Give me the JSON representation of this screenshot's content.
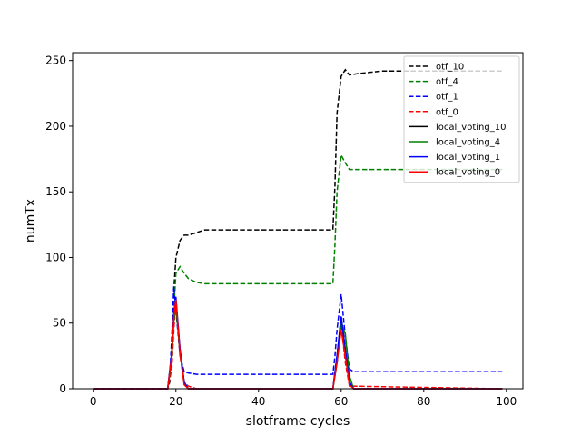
{
  "chart_data": {
    "type": "line",
    "title": "",
    "xlabel": "slotframe cycles",
    "ylabel": "numTx",
    "xlim": [
      -5,
      104
    ],
    "ylim": [
      0,
      256
    ],
    "xticks": [
      0,
      20,
      40,
      60,
      80,
      100
    ],
    "yticks": [
      0,
      50,
      100,
      150,
      200,
      250
    ],
    "grid": false,
    "legend_position": "top-right",
    "series": [
      {
        "name": "otf_10",
        "style": "dashed",
        "color": "#000000",
        "points": [
          [
            0,
            0
          ],
          [
            18,
            0
          ],
          [
            18.5,
            5
          ],
          [
            19,
            30
          ],
          [
            19.5,
            75
          ],
          [
            20,
            100
          ],
          [
            21,
            113
          ],
          [
            22,
            117
          ],
          [
            23,
            117
          ],
          [
            25,
            119
          ],
          [
            27,
            121
          ],
          [
            30,
            121
          ],
          [
            40,
            121
          ],
          [
            50,
            121
          ],
          [
            58,
            121
          ],
          [
            58.5,
            155
          ],
          [
            59,
            210
          ],
          [
            60,
            238
          ],
          [
            61,
            243
          ],
          [
            62,
            239
          ],
          [
            64,
            240
          ],
          [
            67,
            241
          ],
          [
            70,
            242
          ],
          [
            80,
            242
          ],
          [
            99,
            242
          ]
        ]
      },
      {
        "name": "otf_4",
        "style": "dashed",
        "color": "#008000",
        "points": [
          [
            0,
            0
          ],
          [
            18,
            0
          ],
          [
            19,
            20
          ],
          [
            19.5,
            60
          ],
          [
            20,
            88
          ],
          [
            21,
            93
          ],
          [
            22,
            88
          ],
          [
            23,
            84
          ],
          [
            25,
            81
          ],
          [
            27,
            80
          ],
          [
            40,
            80
          ],
          [
            58,
            80
          ],
          [
            58.5,
            110
          ],
          [
            59,
            150
          ],
          [
            60,
            178
          ],
          [
            61,
            172
          ],
          [
            62,
            167
          ],
          [
            64,
            167
          ],
          [
            70,
            167
          ],
          [
            99,
            167
          ]
        ]
      },
      {
        "name": "otf_1",
        "style": "dashed",
        "color": "#0000ff",
        "points": [
          [
            0,
            0
          ],
          [
            18,
            0
          ],
          [
            18.5,
            8
          ],
          [
            19,
            40
          ],
          [
            19.5,
            78
          ],
          [
            20,
            60
          ],
          [
            21,
            25
          ],
          [
            22,
            13
          ],
          [
            23,
            12
          ],
          [
            25,
            11
          ],
          [
            30,
            11
          ],
          [
            40,
            11
          ],
          [
            58,
            11
          ],
          [
            58.5,
            25
          ],
          [
            59,
            45
          ],
          [
            60,
            72
          ],
          [
            61,
            40
          ],
          [
            62,
            15
          ],
          [
            63,
            13
          ],
          [
            70,
            13
          ],
          [
            80,
            13
          ],
          [
            99,
            13
          ]
        ]
      },
      {
        "name": "otf_0",
        "style": "dashed",
        "color": "#ff0000",
        "points": [
          [
            0,
            0
          ],
          [
            18,
            0
          ],
          [
            19,
            15
          ],
          [
            19.5,
            45
          ],
          [
            20,
            68
          ],
          [
            21,
            25
          ],
          [
            22,
            5
          ],
          [
            23,
            2
          ],
          [
            25,
            0
          ],
          [
            58,
            0
          ],
          [
            59,
            20
          ],
          [
            60,
            50
          ],
          [
            61,
            20
          ],
          [
            62,
            2
          ],
          [
            99,
            0
          ]
        ]
      },
      {
        "name": "local_voting_10",
        "style": "solid",
        "color": "#000000",
        "points": [
          [
            0,
            0
          ],
          [
            18,
            0
          ],
          [
            19,
            25
          ],
          [
            19.5,
            55
          ],
          [
            20,
            65
          ],
          [
            21,
            30
          ],
          [
            22,
            5
          ],
          [
            23,
            0
          ],
          [
            58,
            0
          ],
          [
            59,
            25
          ],
          [
            60,
            55
          ],
          [
            61,
            30
          ],
          [
            62,
            5
          ],
          [
            63,
            0
          ],
          [
            99,
            0
          ]
        ]
      },
      {
        "name": "local_voting_4",
        "style": "solid",
        "color": "#008000",
        "points": [
          [
            0,
            0
          ],
          [
            18,
            0
          ],
          [
            19,
            22
          ],
          [
            19.5,
            52
          ],
          [
            20,
            62
          ],
          [
            21,
            28
          ],
          [
            22,
            4
          ],
          [
            23,
            0
          ],
          [
            58,
            0
          ],
          [
            59,
            20
          ],
          [
            60,
            50
          ],
          [
            61,
            42
          ],
          [
            62,
            10
          ],
          [
            63,
            0
          ],
          [
            99,
            0
          ]
        ]
      },
      {
        "name": "local_voting_1",
        "style": "solid",
        "color": "#0000ff",
        "points": [
          [
            0,
            0
          ],
          [
            18,
            0
          ],
          [
            19,
            28
          ],
          [
            19.5,
            58
          ],
          [
            20,
            70
          ],
          [
            21,
            30
          ],
          [
            22,
            5
          ],
          [
            23,
            0
          ],
          [
            58,
            0
          ],
          [
            59,
            25
          ],
          [
            60,
            55
          ],
          [
            61,
            30
          ],
          [
            62,
            5
          ],
          [
            63,
            0
          ],
          [
            99,
            0
          ]
        ]
      },
      {
        "name": "local_voting_0",
        "style": "solid",
        "color": "#ff0000",
        "points": [
          [
            0,
            0
          ],
          [
            18,
            0
          ],
          [
            19,
            25
          ],
          [
            19.5,
            55
          ],
          [
            20,
            68
          ],
          [
            21,
            28
          ],
          [
            22,
            3
          ],
          [
            23,
            0
          ],
          [
            58,
            0
          ],
          [
            59,
            20
          ],
          [
            60,
            45
          ],
          [
            61,
            25
          ],
          [
            62,
            3
          ],
          [
            63,
            0
          ],
          [
            99,
            0
          ]
        ]
      }
    ]
  }
}
